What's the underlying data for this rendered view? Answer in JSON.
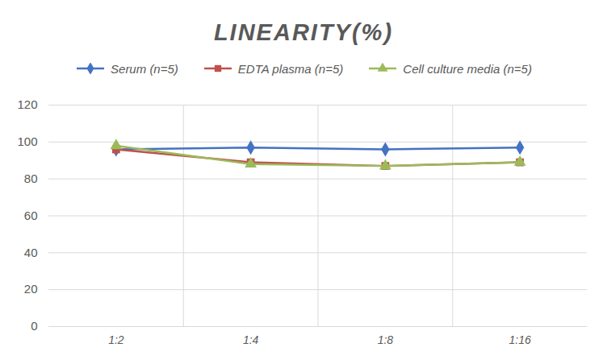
{
  "chart_data": {
    "type": "line",
    "title": "LINEARITY(%)",
    "categories": [
      "1:2",
      "1:4",
      "1:8",
      "1:16"
    ],
    "series": [
      {
        "name": "Serum (n=5)",
        "color": "#4472c4",
        "marker": "diamond",
        "values": [
          96,
          97,
          96,
          97
        ]
      },
      {
        "name": "EDTA plasma (n=5)",
        "color": "#c0504d",
        "marker": "square",
        "values": [
          96,
          89,
          87,
          89
        ]
      },
      {
        "name": "Cell culture media (n=5)",
        "color": "#9bbb59",
        "marker": "triangle",
        "values": [
          98,
          88,
          87,
          89
        ]
      }
    ],
    "ylim": [
      0,
      120
    ],
    "yticks": [
      0,
      20,
      40,
      60,
      80,
      100,
      120
    ],
    "grid": true,
    "legend": "top"
  }
}
